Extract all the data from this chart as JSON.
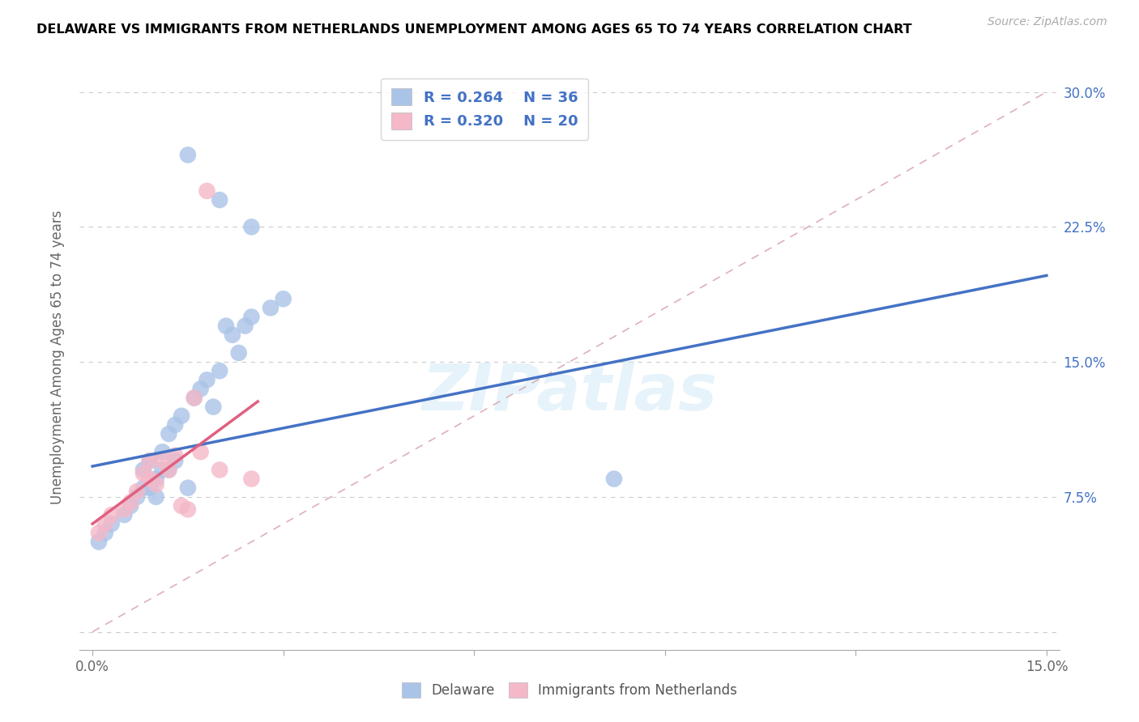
{
  "title": "DELAWARE VS IMMIGRANTS FROM NETHERLANDS UNEMPLOYMENT AMONG AGES 65 TO 74 YEARS CORRELATION CHART",
  "source": "Source: ZipAtlas.com",
  "ylabel": "Unemployment Among Ages 65 to 74 years",
  "xlim": [
    -0.002,
    0.152
  ],
  "ylim": [
    -0.01,
    0.315
  ],
  "xticks": [
    0.0,
    0.03,
    0.06,
    0.09,
    0.12,
    0.15
  ],
  "xticklabels": [
    "0.0%",
    "",
    "",
    "",
    "",
    "15.0%"
  ],
  "yticks_right": [
    0.0,
    0.075,
    0.15,
    0.225,
    0.3
  ],
  "yticklabels_right": [
    "",
    "7.5%",
    "15.0%",
    "22.5%",
    "30.0%"
  ],
  "watermark": "ZIPatlas",
  "legend_r1": "R = 0.264",
  "legend_n1": "N = 36",
  "legend_r2": "R = 0.320",
  "legend_n2": "N = 20",
  "delaware_color": "#aac4e8",
  "netherlands_color": "#f4b8c8",
  "delaware_line_color": "#4472c4",
  "netherlands_line_color": "#e06080",
  "ref_line_color": "#dba8b0",
  "delaware_scatter_x": [
    0.001,
    0.002,
    0.003,
    0.005,
    0.006,
    0.007,
    0.008,
    0.008,
    0.009,
    0.009,
    0.01,
    0.01,
    0.011,
    0.011,
    0.012,
    0.012,
    0.013,
    0.013,
    0.014,
    0.015,
    0.016,
    0.017,
    0.018,
    0.019,
    0.02,
    0.021,
    0.022,
    0.023,
    0.024,
    0.025,
    0.028,
    0.03,
    0.015,
    0.02,
    0.082,
    0.025
  ],
  "delaware_scatter_y": [
    0.05,
    0.055,
    0.06,
    0.065,
    0.07,
    0.075,
    0.08,
    0.09,
    0.08,
    0.095,
    0.075,
    0.085,
    0.09,
    0.1,
    0.09,
    0.11,
    0.095,
    0.115,
    0.12,
    0.08,
    0.13,
    0.135,
    0.14,
    0.125,
    0.145,
    0.17,
    0.165,
    0.155,
    0.17,
    0.175,
    0.18,
    0.185,
    0.265,
    0.24,
    0.085,
    0.225
  ],
  "netherlands_scatter_x": [
    0.001,
    0.002,
    0.003,
    0.005,
    0.006,
    0.007,
    0.008,
    0.009,
    0.009,
    0.01,
    0.011,
    0.012,
    0.013,
    0.014,
    0.015,
    0.016,
    0.017,
    0.018,
    0.02,
    0.025
  ],
  "netherlands_scatter_y": [
    0.055,
    0.06,
    0.065,
    0.068,
    0.072,
    0.078,
    0.088,
    0.095,
    0.085,
    0.082,
    0.095,
    0.09,
    0.098,
    0.07,
    0.068,
    0.13,
    0.1,
    0.245,
    0.09,
    0.085
  ],
  "delaware_line_x0": 0.0,
  "delaware_line_y0": 0.092,
  "delaware_line_x1": 0.15,
  "delaware_line_y1": 0.198,
  "netherlands_line_x0": 0.0,
  "netherlands_line_y0": 0.06,
  "netherlands_line_x1": 0.026,
  "netherlands_line_y1": 0.128,
  "ref_line_x0": 0.0,
  "ref_line_y0": 0.0,
  "ref_line_x1": 0.15,
  "ref_line_y1": 0.3
}
